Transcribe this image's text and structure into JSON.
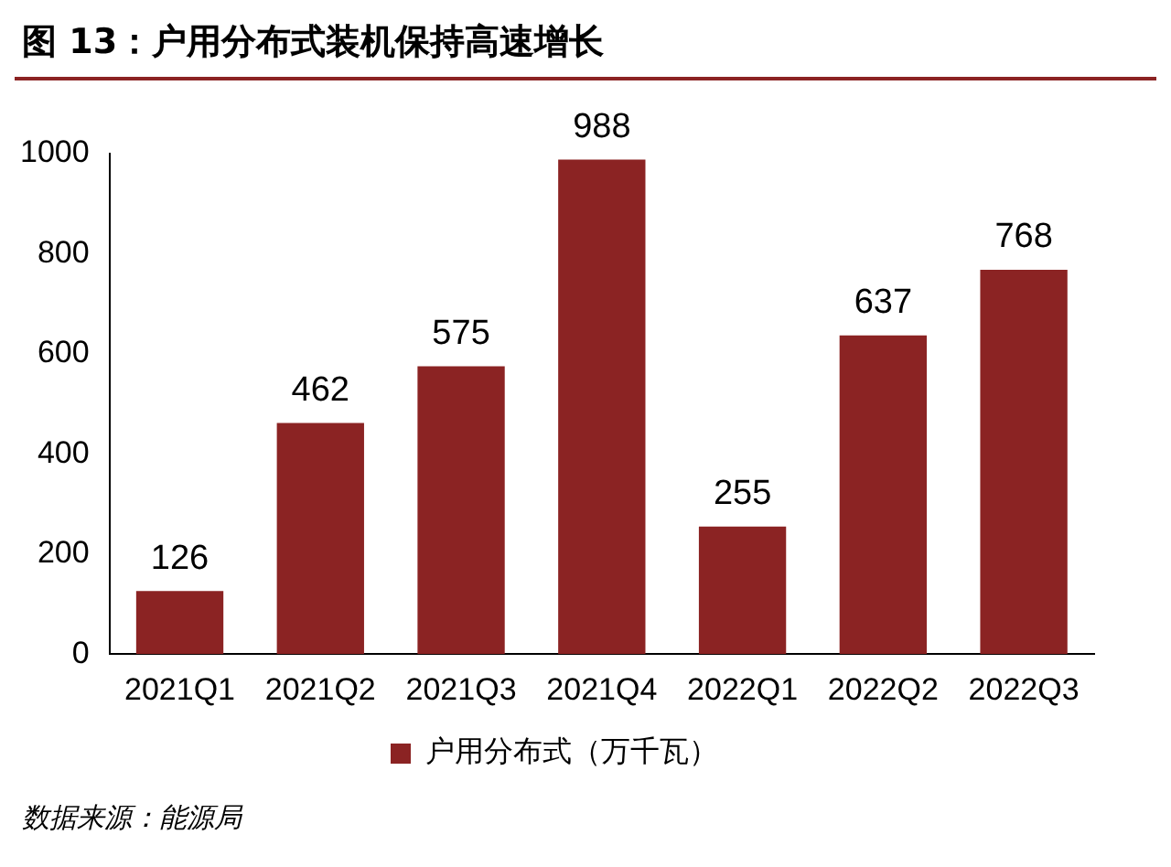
{
  "chart_data": {
    "type": "bar",
    "title": "图 13：户用分布式装机保持高速增长",
    "categories": [
      "2021Q1",
      "2021Q2",
      "2021Q3",
      "2021Q4",
      "2022Q1",
      "2022Q2",
      "2022Q3"
    ],
    "series": [
      {
        "name": "户用分布式（万千瓦）",
        "color": "#8b2323",
        "values": [
          126,
          462,
          575,
          988,
          255,
          637,
          768
        ]
      }
    ],
    "ylim": [
      0,
      1000
    ],
    "yticks": [
      0,
      200,
      400,
      600,
      800,
      1000
    ],
    "grid": false,
    "legend": "bottom",
    "data_labels": true,
    "annotations": [
      "数据来源：能源局"
    ]
  }
}
